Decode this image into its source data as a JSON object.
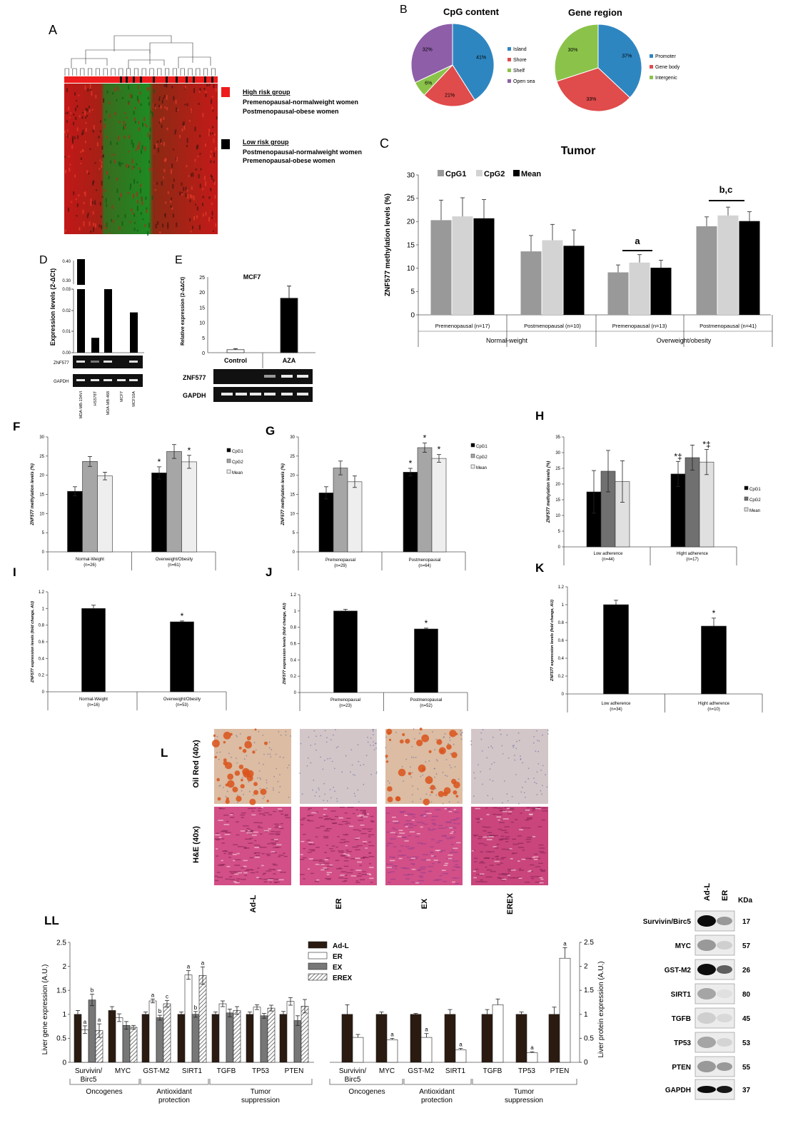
{
  "panels": {
    "A": {
      "letter": "A",
      "high_risk": {
        "title": "High risk group",
        "lines": [
          "Premenopausal-normalweight women",
          "Postmenopausal-obese women"
        ],
        "color": "#ee1c1c"
      },
      "low_risk": {
        "title": "Low risk group",
        "lines": [
          "Postmenopausal-normalweight women",
          "Premenopausal-obese women"
        ],
        "color": "#000000"
      }
    },
    "B": {
      "letter": "B",
      "cpg": {
        "title": "CpG content",
        "labels": [
          "Island",
          "Shore",
          "Shelf",
          "Open sea"
        ],
        "values": [
          41,
          21,
          6,
          32
        ],
        "texts": [
          "41%",
          "21%",
          "6%",
          "32%"
        ],
        "colors": [
          "#2e86c1",
          "#e04b4b",
          "#8bc34a",
          "#8e5ea8"
        ]
      },
      "region": {
        "title": "Gene region",
        "labels": [
          "Promoter",
          "Gene body",
          "Intergenic"
        ],
        "values": [
          37,
          33,
          30
        ],
        "texts": [
          "37%",
          "33%",
          "30%"
        ],
        "colors": [
          "#2e86c1",
          "#e04b4b",
          "#8bc34a"
        ]
      }
    },
    "D": {
      "letter": "D",
      "ylabel": "Expression levels (2-ΔCt)",
      "cells": [
        "MDA-MB-134VI",
        "HS578T",
        "MDA-MB-468",
        "MCF7",
        "MCF10A"
      ],
      "values": [
        0.4,
        0.007,
        0.03,
        0,
        0.019
      ],
      "upper_ticks": [
        "0.40",
        "0.30"
      ],
      "lower_ticks": [
        "0.03",
        "0.02",
        "0.01",
        "0.00"
      ],
      "gels": [
        "ZNF577",
        "GAPDH"
      ]
    },
    "E": {
      "letter": "E",
      "title": "MCF7",
      "ylabel": "Relative expression (2-ΔΔCt)",
      "yticks": [
        "0",
        "5",
        "10",
        "15",
        "20",
        "25"
      ],
      "groups": [
        "Control",
        "AZA"
      ],
      "values": [
        1,
        18
      ],
      "errors": [
        0.3,
        4
      ],
      "gels": [
        "ZNF577",
        "GAPDH"
      ]
    },
    "LL": {
      "letter": "LL",
      "left_ylabel": "Liver gene expression (A.U.)",
      "right_ylabel": "Liver protein expression (A.U.)",
      "yticks": [
        "0",
        "0.5",
        "1",
        "1.5",
        "2",
        "2.5"
      ],
      "genes": [
        "Survivin/ Birc5",
        "MYC",
        "GST-M2",
        "SIRT1",
        "TGFB",
        "TP53",
        "PTEN"
      ],
      "categories": [
        [
          "Oncogenes"
        ],
        [
          "Antioxidant",
          "protection"
        ],
        [
          "Tumor",
          "suppression"
        ]
      ],
      "legend": [
        "Ad-L",
        "ER",
        "EX",
        "EREX"
      ],
      "western_labels": [
        "Survivin/Birc5",
        "MYC",
        "GST-M2",
        "SIRT1",
        "TGFB",
        "TP53",
        "PTEN",
        "GAPDH"
      ],
      "western_kda": [
        "17",
        "57",
        "26",
        "80",
        "45",
        "53",
        "55",
        "37"
      ],
      "western_cols": [
        "Ad-L",
        "ER"
      ],
      "kda_label": "KDa"
    },
    "L": {
      "letter": "L",
      "rows": [
        "Oil Red (40x)",
        "H&E (40x)"
      ],
      "cols": [
        "Ad-L",
        "ER",
        "EX",
        "EREX"
      ]
    }
  },
  "chart_data": [
    {
      "id": "C",
      "type": "bar",
      "letter": "C",
      "title": "Tumor",
      "ylabel": "ZNF577 methylation levels (%)",
      "ylim": [
        0,
        30
      ],
      "yticks": [
        0,
        5,
        10,
        15,
        20,
        25,
        30
      ],
      "categories": [
        "Premenopausal (n=17)",
        "Postmenopausal (n=10)",
        "Premenopausal (n=13)",
        "Postmenopausal (n=41)"
      ],
      "groups": [
        "Normal-weight",
        "Overweight/obesity"
      ],
      "legend": [
        "CpG1",
        "CpG2",
        "Mean"
      ],
      "series": [
        {
          "name": "CpG1",
          "color": "#999999",
          "values": [
            20.3,
            13.6,
            9.1,
            19.0
          ],
          "errors": [
            4.3,
            3.4,
            1.6,
            2.0
          ]
        },
        {
          "name": "CpG2",
          "color": "#d3d3d3",
          "values": [
            21.1,
            16.0,
            11.2,
            21.3
          ],
          "errors": [
            4.0,
            3.4,
            1.7,
            1.8
          ]
        },
        {
          "name": "Mean",
          "color": "#000000",
          "values": [
            20.7,
            14.8,
            10.1,
            20.1
          ],
          "errors": [
            4.0,
            3.4,
            1.6,
            2.0
          ]
        }
      ],
      "annotations": [
        "",
        "",
        "a",
        "b,c"
      ]
    },
    {
      "id": "F",
      "type": "bar",
      "letter": "F",
      "ylabel": "ZNF577 methylation levels (%)",
      "ylim": [
        0,
        30
      ],
      "yticks": [
        0,
        5,
        10,
        15,
        20,
        25,
        30
      ],
      "categories": [
        "Normal-Weight",
        "Overweight/Obesity"
      ],
      "sublabels": [
        "(n=26)",
        "(n=61)"
      ],
      "legend": [
        "CpG1",
        "CpG2",
        "Mean"
      ],
      "series": [
        {
          "name": "CpG1",
          "color": "#000000",
          "values": [
            15.8,
            20.6
          ],
          "errors": [
            1.2,
            1.6
          ],
          "marks": [
            "",
            "*"
          ]
        },
        {
          "name": "CpG2",
          "color": "#a6a6a6",
          "values": [
            23.6,
            26.2
          ],
          "errors": [
            1.3,
            1.8
          ],
          "marks": [
            "",
            ""
          ]
        },
        {
          "name": "Mean",
          "color": "#eeeeee",
          "values": [
            19.8,
            23.5
          ],
          "errors": [
            1.0,
            1.7
          ],
          "marks": [
            "",
            "*"
          ]
        }
      ]
    },
    {
      "id": "G",
      "type": "bar",
      "letter": "G",
      "ylabel": "ZNF577 methylation levels (%)",
      "ylim": [
        0,
        30
      ],
      "yticks": [
        0,
        5,
        10,
        15,
        20,
        25,
        30
      ],
      "categories": [
        "Premenopausal",
        "Postmenopausal"
      ],
      "sublabels": [
        "(n=29)",
        "(n=64)"
      ],
      "legend": [
        "CpG1",
        "CpG2",
        "Mean"
      ],
      "series": [
        {
          "name": "CpG1",
          "color": "#000000",
          "values": [
            15.4,
            20.8
          ],
          "errors": [
            1.6,
            1.0
          ],
          "marks": [
            "",
            "*"
          ]
        },
        {
          "name": "CpG2",
          "color": "#a6a6a6",
          "values": [
            21.9,
            27.2
          ],
          "errors": [
            1.8,
            1.2
          ],
          "marks": [
            "",
            "*"
          ]
        },
        {
          "name": "Mean",
          "color": "#eeeeee",
          "values": [
            18.3,
            24.4
          ],
          "errors": [
            1.5,
            1.0
          ],
          "marks": [
            "",
            "*"
          ]
        }
      ]
    },
    {
      "id": "H",
      "type": "bar",
      "letter": "H",
      "ylabel": "ZNF577 methylation levels (%)",
      "ylim": [
        0,
        35
      ],
      "yticks": [
        0,
        5,
        10,
        15,
        20,
        25,
        30,
        35
      ],
      "categories": [
        "Low adherence",
        "Hight adherence"
      ],
      "sublabels": [
        "(n=44)",
        "(n=17)"
      ],
      "legend": [
        "CpG1",
        "CpG2",
        "Mean"
      ],
      "series": [
        {
          "name": "CpG1",
          "color": "#000000",
          "values": [
            17.5,
            23.2
          ],
          "errors": [
            6.8,
            4.0
          ],
          "marks": [
            "",
            "*‡"
          ]
        },
        {
          "name": "CpG2",
          "color": "#707070",
          "values": [
            24.1,
            28.4
          ],
          "errors": [
            6.6,
            4.0
          ],
          "marks": [
            "",
            ""
          ]
        },
        {
          "name": "Mean",
          "color": "#e0e0e0",
          "values": [
            20.8,
            27.0
          ],
          "errors": [
            6.6,
            4.0
          ],
          "marks": [
            "",
            "*‡"
          ]
        }
      ]
    },
    {
      "id": "I",
      "type": "bar",
      "letter": "I",
      "ylabel": "ZNF577 expression levels (fold change, AU)",
      "ylim": [
        0,
        1.2
      ],
      "yticks": [
        0,
        0.2,
        0.4,
        0.6,
        0.8,
        1,
        1.2
      ],
      "categories": [
        "Normal-Weight",
        "Overweight/Obesity"
      ],
      "sublabels": [
        "(n=16)",
        "(n=53)"
      ],
      "series": [
        {
          "name": "ZNF577",
          "color": "#000000",
          "values": [
            1.0,
            0.84
          ],
          "errors": [
            0.04,
            0.01
          ],
          "marks": [
            "",
            "*"
          ]
        }
      ]
    },
    {
      "id": "J",
      "type": "bar",
      "letter": "J",
      "ylabel": "ZNF577 expression levels (fold change, AU)",
      "ylim": [
        0,
        1.2
      ],
      "yticks": [
        0,
        0.2,
        0.4,
        0.6,
        0.8,
        1,
        1.2
      ],
      "categories": [
        "Premenopausal",
        "Postmenopausal"
      ],
      "sublabels": [
        "(n=23)",
        "(n=52)"
      ],
      "series": [
        {
          "name": "ZNF577",
          "color": "#000000",
          "values": [
            1.0,
            0.78
          ],
          "errors": [
            0.02,
            0.01
          ],
          "marks": [
            "",
            "*"
          ]
        }
      ]
    },
    {
      "id": "K",
      "type": "bar",
      "letter": "K",
      "ylabel": "ZNF577 expression levels (fold change, AU)",
      "ylim": [
        0,
        1.2
      ],
      "yticks": [
        0,
        0.2,
        0.4,
        0.6,
        0.8,
        1,
        1.2
      ],
      "categories": [
        "Low adherence",
        "Hight adherence"
      ],
      "sublabels": [
        "(n=34)",
        "(n=10)"
      ],
      "series": [
        {
          "name": "ZNF577",
          "color": "#000000",
          "values": [
            1.0,
            0.76
          ],
          "errors": [
            0.05,
            0.09
          ],
          "marks": [
            "",
            "*"
          ]
        }
      ]
    },
    {
      "id": "LL-gene",
      "type": "bar",
      "ylim": [
        0,
        2.5
      ],
      "categories": [
        "Survivin/ Birc5",
        "MYC",
        "GST-M2",
        "SIRT1",
        "TGFB",
        "TP53",
        "PTEN"
      ],
      "series": [
        {
          "name": "Ad-L",
          "values": [
            1.0,
            1.08,
            1.0,
            1.0,
            1.0,
            1.0,
            1.0
          ],
          "errors": [
            0.08,
            0.08,
            0.05,
            0.05,
            0.05,
            0.05,
            0.06
          ],
          "marks": [
            "",
            "",
            "",
            "",
            "",
            "",
            ""
          ]
        },
        {
          "name": "ER",
          "values": [
            0.68,
            0.93,
            1.28,
            1.82,
            1.22,
            1.15,
            1.27
          ],
          "errors": [
            0.08,
            0.08,
            0.04,
            0.09,
            0.06,
            0.05,
            0.08
          ],
          "marks": [
            "a",
            "",
            "a",
            "a",
            "",
            "",
            ""
          ]
        },
        {
          "name": "EX",
          "values": [
            1.3,
            0.77,
            0.93,
            1.0,
            1.03,
            0.97,
            0.87
          ],
          "errors": [
            0.12,
            0.08,
            0.05,
            0.06,
            0.08,
            0.05,
            0.1
          ],
          "marks": [
            "b",
            "",
            "b",
            "b",
            "",
            "",
            ""
          ]
        },
        {
          "name": "EREX",
          "values": [
            0.66,
            0.73,
            1.22,
            1.81,
            1.08,
            1.13,
            1.17
          ],
          "errors": [
            0.14,
            0.04,
            0.07,
            0.18,
            0.08,
            0.06,
            0.14
          ],
          "marks": [
            "a",
            "",
            "c",
            "a",
            "",
            "",
            ""
          ]
        }
      ]
    },
    {
      "id": "LL-protein",
      "type": "bar",
      "ylim": [
        0,
        2.5
      ],
      "categories": [
        "Survivin/ Birc5",
        "MYC",
        "GST-M2",
        "SIRT1",
        "TGFB",
        "TP53",
        "PTEN"
      ],
      "series": [
        {
          "name": "Ad-L",
          "values": [
            1.0,
            1.0,
            1.0,
            1.0,
            1.0,
            1.0,
            1.0
          ],
          "errors": [
            0.2,
            0.05,
            0.02,
            0.1,
            0.1,
            0.05,
            0.15
          ],
          "marks": [
            "",
            "",
            "",
            "",
            "",
            "",
            ""
          ]
        },
        {
          "name": "ER",
          "values": [
            0.52,
            0.47,
            0.52,
            0.26,
            1.2,
            0.2,
            2.17
          ],
          "errors": [
            0.06,
            0.03,
            0.08,
            0.03,
            0.12,
            0.02,
            0.22
          ],
          "marks": [
            "",
            "a",
            "a",
            "a",
            "",
            "a",
            "a"
          ]
        }
      ]
    }
  ]
}
